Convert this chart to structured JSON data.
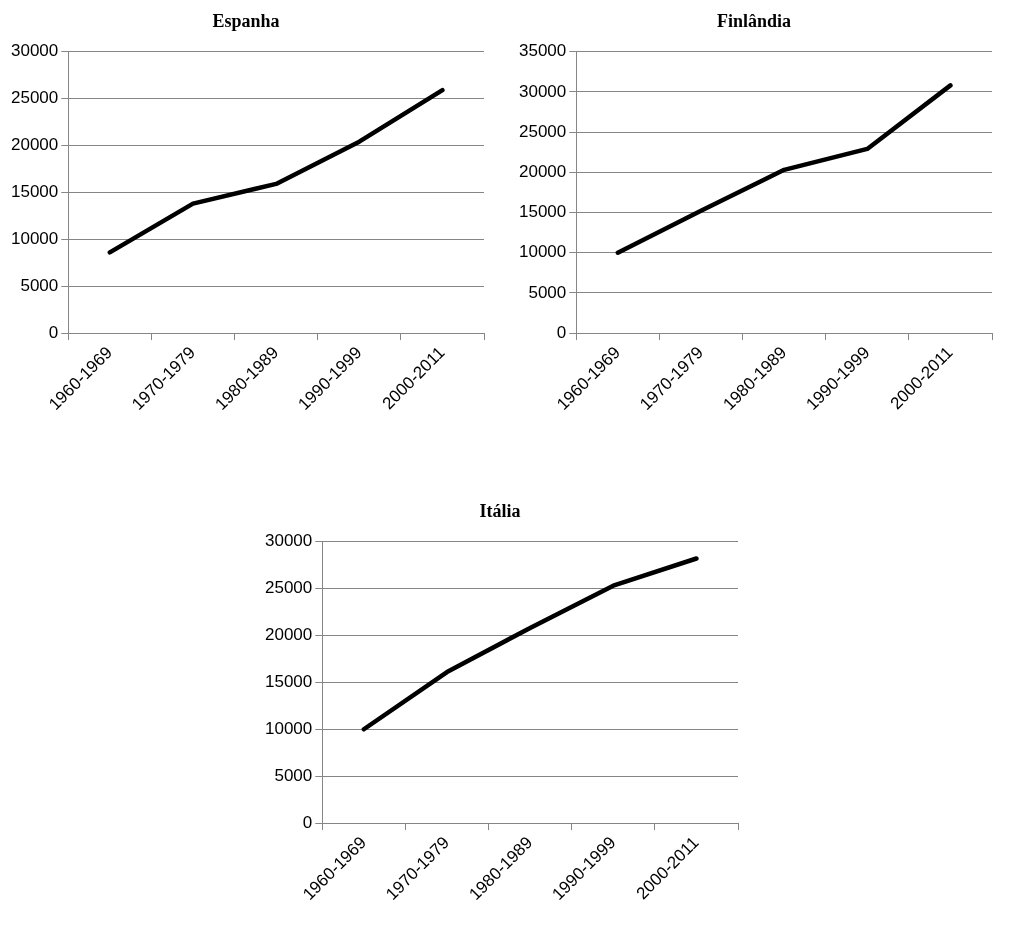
{
  "chart_data": [
    {
      "type": "line",
      "title": "Espanha",
      "categories": [
        "1960-1969",
        "1970-1979",
        "1980-1989",
        "1990-1999",
        "2000-2011"
      ],
      "series": [
        {
          "color": "#000000",
          "values": [
            8600,
            13800,
            15900,
            20400,
            25900
          ]
        }
      ],
      "ylim": [
        0,
        30000
      ],
      "yticks": [
        0,
        5000,
        10000,
        15000,
        20000,
        25000,
        30000
      ],
      "grid": "y",
      "marker": "none"
    },
    {
      "type": "line",
      "title": "Finlândia",
      "categories": [
        "1960-1969",
        "1970-1979",
        "1980-1989",
        "1990-1999",
        "2000-2011"
      ],
      "series": [
        {
          "color": "#000000",
          "values": [
            10000,
            15200,
            20300,
            22900,
            30800
          ]
        }
      ],
      "ylim": [
        0,
        35000
      ],
      "yticks": [
        0,
        5000,
        10000,
        15000,
        20000,
        25000,
        30000,
        35000
      ],
      "grid": "y",
      "marker": "none"
    },
    {
      "type": "line",
      "title": "Itália",
      "categories": [
        "1960-1969",
        "1970-1979",
        "1980-1989",
        "1990-1999",
        "2000-2011"
      ],
      "series": [
        {
          "color": "#000000",
          "values": [
            10000,
            16100,
            20800,
            25300,
            28200
          ]
        }
      ],
      "ylim": [
        0,
        30000
      ],
      "yticks": [
        0,
        5000,
        10000,
        15000,
        20000,
        25000,
        30000
      ],
      "grid": "y",
      "marker": "none"
    }
  ]
}
